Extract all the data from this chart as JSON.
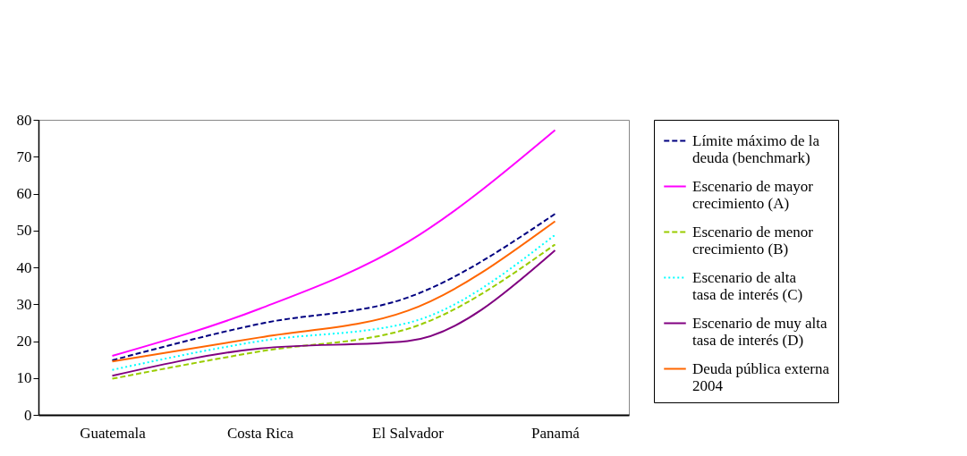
{
  "chart_data": {
    "type": "line",
    "categories": [
      "Guatemala",
      "Costa Rica",
      "El Salvador",
      "Panamá"
    ],
    "series": [
      {
        "name": "Límite máximo de la deuda (benchmark)",
        "color": "#000080",
        "line_style": "dashed",
        "values": [
          14.8,
          24.7,
          31.8,
          54.5
        ]
      },
      {
        "name": "Escenario de mayor crecimiento (A)",
        "color": "#ff00ff",
        "line_style": "solid",
        "values": [
          16,
          28.8,
          46.8,
          77.2
        ]
      },
      {
        "name": "Escenario de menor crecimiento (B)",
        "color": "#99cc00",
        "line_style": "dashed",
        "values": [
          9.8,
          17.2,
          23.3,
          46.2
        ]
      },
      {
        "name": "Escenario de alta tasa de interés (C)",
        "color": "#00ffff",
        "line_style": "dotted",
        "values": [
          12.2,
          20,
          24.9,
          48.8
        ]
      },
      {
        "name": "Escenario de muy alta tasa de interés (D)",
        "color": "#800080",
        "line_style": "solid",
        "values": [
          10.6,
          18,
          20,
          44.6
        ]
      },
      {
        "name": "Deuda pública externa 2004",
        "color": "#ff6600",
        "line_style": "solid",
        "values": [
          14.5,
          21,
          28.2,
          52.5
        ]
      }
    ],
    "ylim": [
      0,
      80
    ],
    "yticks": [
      0,
      10,
      20,
      30,
      40,
      50,
      60,
      70,
      80
    ],
    "grid": false,
    "legend": "right",
    "marker": "none"
  }
}
